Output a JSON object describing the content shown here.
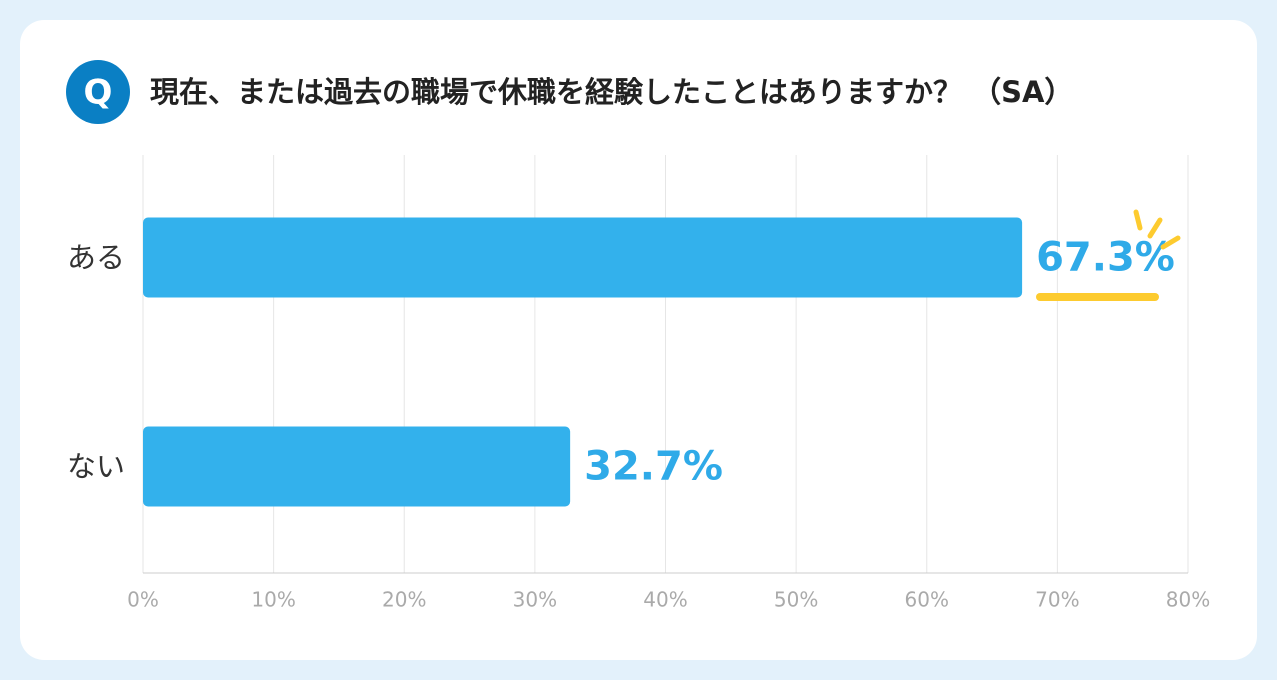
{
  "chart_data": {
    "type": "hbar",
    "badge": "Q",
    "title": "現在、または過去の職場で休職を経験したことはありますか？ （SA）",
    "categories": [
      "ある",
      "ない"
    ],
    "values": [
      67.3,
      32.7
    ],
    "value_labels": [
      "67.3%",
      "32.7%"
    ],
    "color": "#33b1ec",
    "xlim": [
      0,
      80
    ],
    "xticks": [
      {
        "value": 0,
        "label": "0%"
      },
      {
        "value": 10,
        "label": "10%"
      },
      {
        "value": 20,
        "label": "20%"
      },
      {
        "value": 30,
        "label": "30%"
      },
      {
        "value": 40,
        "label": "40%"
      },
      {
        "value": 50,
        "label": "50%"
      },
      {
        "value": 60,
        "label": "60%"
      },
      {
        "value": 70,
        "label": "70%"
      },
      {
        "value": 80,
        "label": "80%"
      }
    ],
    "grid": true
  }
}
